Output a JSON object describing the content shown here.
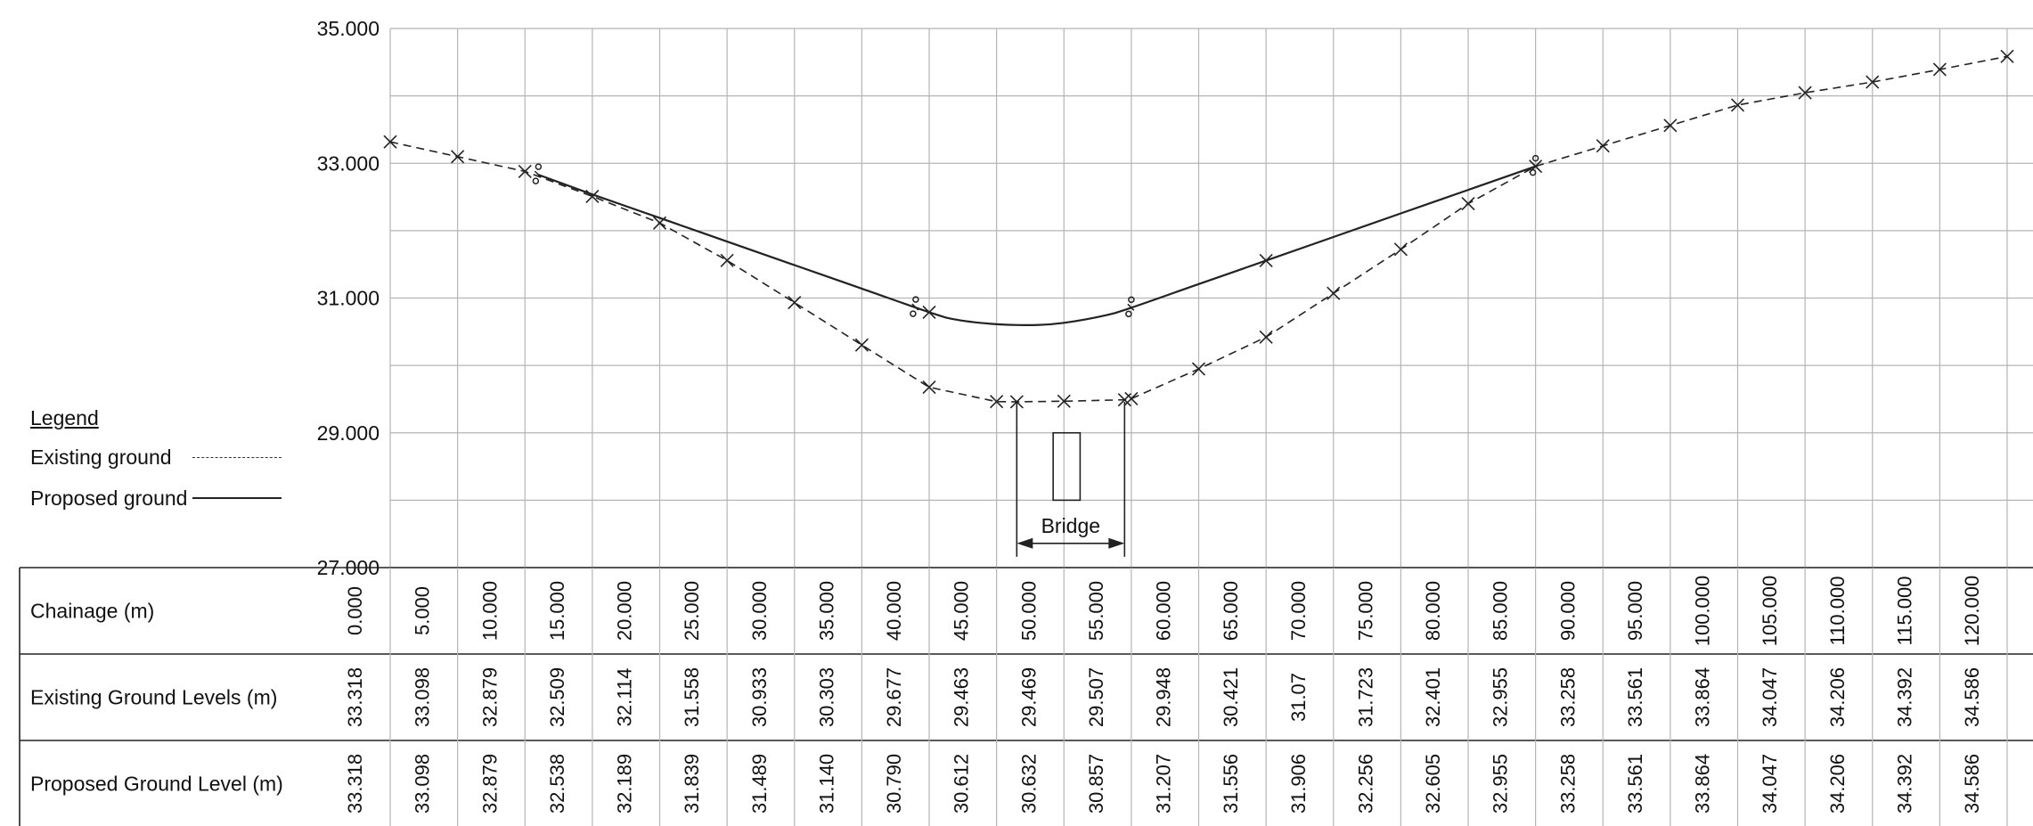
{
  "legend": {
    "title": "Legend",
    "existing_label": "Existing ground",
    "proposed_label": "Proposed ground"
  },
  "annotation": {
    "bridge_label": "Bridge"
  },
  "table": {
    "rows": [
      {
        "label": "Chainage (m)"
      },
      {
        "label": "Existing Ground Levels (m)"
      },
      {
        "label": "Proposed Ground Level (m)"
      }
    ]
  },
  "chart_data": {
    "type": "line",
    "xlabel": "Chainage (m)",
    "ylim": [
      27,
      35
    ],
    "yticks": [
      "27.000",
      "29.000",
      "31.000",
      "33.000",
      "35.000"
    ],
    "grid": true,
    "legend_position": "left",
    "x": [
      0,
      5,
      10,
      15,
      20,
      25,
      30,
      35,
      40,
      45,
      50,
      55,
      60,
      65,
      70,
      75,
      80,
      85,
      90,
      95,
      100,
      105,
      110,
      115,
      120
    ],
    "x_labels": [
      "0.000",
      "5.000",
      "10.000",
      "15.000",
      "20.000",
      "25.000",
      "30.000",
      "35.000",
      "40.000",
      "45.000",
      "50.000",
      "55.000",
      "60.000",
      "65.000",
      "70.000",
      "75.000",
      "80.000",
      "85.000",
      "90.000",
      "95.000",
      "100.000",
      "105.000",
      "110.000",
      "115.000",
      "120.000"
    ],
    "existing_labels": [
      "33.318",
      "33.098",
      "32.879",
      "32.509",
      "32.114",
      "31.558",
      "30.933",
      "30.303",
      "29.677",
      "29.463",
      "29.469",
      "29.507",
      "29.948",
      "30.421",
      "31.07",
      "31.723",
      "32.401",
      "32.955",
      "33.258",
      "33.561",
      "33.864",
      "34.047",
      "34.206",
      "34.392",
      "34.586"
    ],
    "proposed_labels": [
      "33.318",
      "33.098",
      "32.879",
      "32.538",
      "32.189",
      "31.839",
      "31.489",
      "31.140",
      "30.790",
      "30.612",
      "30.632",
      "30.857",
      "31.207",
      "31.556",
      "31.906",
      "32.256",
      "32.605",
      "32.955",
      "33.258",
      "33.561",
      "33.864",
      "34.047",
      "34.206",
      "34.392",
      "34.586"
    ],
    "series": [
      {
        "name": "Existing ground",
        "style": "dashed",
        "points": [
          [
            0,
            33.318
          ],
          [
            5,
            33.098
          ],
          [
            10,
            32.879
          ],
          [
            15,
            32.509
          ],
          [
            20,
            32.114
          ],
          [
            25,
            31.558
          ],
          [
            30,
            30.933
          ],
          [
            35,
            30.303
          ],
          [
            40,
            29.677
          ],
          [
            45,
            29.463
          ],
          [
            46.5,
            29.46
          ],
          [
            50,
            29.469
          ],
          [
            54.5,
            29.49
          ],
          [
            55,
            29.507
          ],
          [
            60,
            29.948
          ],
          [
            65,
            30.421
          ],
          [
            70,
            31.07
          ],
          [
            75,
            31.723
          ],
          [
            80,
            32.401
          ],
          [
            85,
            32.955
          ],
          [
            90,
            33.258
          ],
          [
            95,
            33.561
          ],
          [
            100,
            33.864
          ],
          [
            105,
            34.047
          ],
          [
            110,
            34.206
          ],
          [
            115,
            34.392
          ],
          [
            120,
            34.586
          ]
        ]
      },
      {
        "name": "Proposed ground",
        "style": "solid",
        "points": [
          [
            11,
            32.83
          ],
          [
            15,
            32.538
          ],
          [
            20,
            32.189
          ],
          [
            25,
            31.839
          ],
          [
            30,
            31.489
          ],
          [
            35,
            31.14
          ],
          [
            40,
            30.79
          ],
          [
            42,
            30.68
          ],
          [
            45,
            30.612
          ],
          [
            48,
            30.6
          ],
          [
            50,
            30.632
          ],
          [
            53,
            30.74
          ],
          [
            55,
            30.857
          ],
          [
            60,
            31.207
          ],
          [
            65,
            31.556
          ],
          [
            70,
            31.906
          ],
          [
            75,
            32.256
          ],
          [
            80,
            32.605
          ],
          [
            85,
            32.955
          ]
        ],
        "marked_x": [
          40,
          65
        ]
      }
    ],
    "break_marks_x": [
      11,
      39,
      55,
      85
    ],
    "bridge": {
      "from": 46.5,
      "to": 54.5
    }
  },
  "colors": {
    "grid": "#b5b5b5",
    "line": "#222222",
    "background": "#ffffff"
  }
}
